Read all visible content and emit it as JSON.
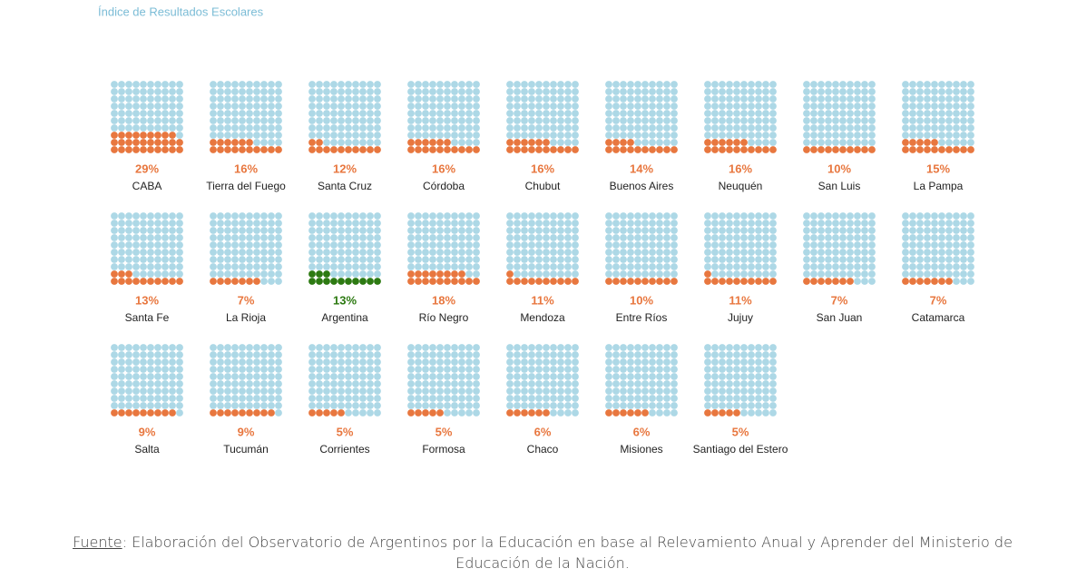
{
  "chart_data": {
    "type": "waffle",
    "subtitle": "Índice de Resultados Escolares",
    "categories": [
      "CABA",
      "Tierra del Fuego",
      "Santa Cruz",
      "Córdoba",
      "Chubut",
      "Buenos Aires",
      "Neuquén",
      "San Luis",
      "La Pampa",
      "Santa Fe",
      "La Rioja",
      "Argentina",
      "Río Negro",
      "Mendoza",
      "Entre Ríos",
      "Jujuy",
      "San Juan",
      "Catamarca",
      "Salta",
      "Tucumán",
      "Corrientes",
      "Formosa",
      "Chaco",
      "Misiones",
      "Santiago del Estero"
    ],
    "values": [
      29,
      16,
      12,
      16,
      16,
      14,
      16,
      10,
      15,
      13,
      7,
      13,
      18,
      11,
      10,
      11,
      7,
      7,
      9,
      9,
      5,
      5,
      6,
      6,
      5
    ],
    "value_labels": [
      "29%",
      "16%",
      "12%",
      "16%",
      "16%",
      "14%",
      "16%",
      "10%",
      "15%",
      "13%",
      "7%",
      "13%",
      "18%",
      "11%",
      "10%",
      "11%",
      "7%",
      "7%",
      "9%",
      "9%",
      "5%",
      "5%",
      "6%",
      "6%",
      "5%"
    ],
    "colors": [
      "#e8773f",
      "#e8773f",
      "#e8773f",
      "#e8773f",
      "#e8773f",
      "#e8773f",
      "#e8773f",
      "#e8773f",
      "#e8773f",
      "#e8773f",
      "#e8773f",
      "#2d7a12",
      "#e8773f",
      "#e8773f",
      "#e8773f",
      "#e8773f",
      "#e8773f",
      "#e8773f",
      "#e8773f",
      "#e8773f",
      "#e8773f",
      "#e8773f",
      "#e8773f",
      "#e8773f",
      "#e8773f"
    ],
    "empty_color": "#add8e6"
  },
  "source": {
    "label": "Fuente",
    "text": ": Elaboración del Observatorio de Argentinos por la Educación en base al Relevamiento Anual y Aprender del Ministerio de Educación de la Nación."
  }
}
